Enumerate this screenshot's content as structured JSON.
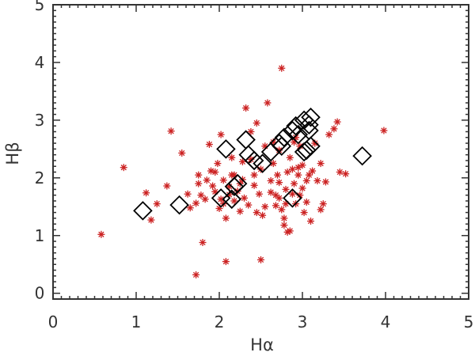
{
  "chart_data": {
    "type": "scatter",
    "title": "",
    "xlabel": "Hα",
    "ylabel": "Hβ",
    "xlim": [
      0,
      5
    ],
    "ylim": [
      -0.1,
      5
    ],
    "xticks": [
      "0",
      "1",
      "2",
      "3",
      "4",
      "5"
    ],
    "yticks": [
      "0",
      "1",
      "2",
      "3",
      "4",
      "5"
    ],
    "grid": false,
    "legend": "none",
    "colors": {
      "asterisk": "#cc2222",
      "diamond": "#000000",
      "axis": "#333333"
    },
    "series": [
      {
        "marker": "asterisk",
        "points": [
          [
            0.58,
            1.02
          ],
          [
            0.85,
            2.18
          ],
          [
            1.12,
            1.74
          ],
          [
            1.18,
            1.27
          ],
          [
            1.25,
            1.55
          ],
          [
            1.37,
            1.86
          ],
          [
            1.42,
            2.81
          ],
          [
            1.55,
            2.43
          ],
          [
            1.62,
            1.72
          ],
          [
            1.65,
            1.48
          ],
          [
            1.72,
            0.32
          ],
          [
            1.72,
            1.56
          ],
          [
            1.75,
            2.05
          ],
          [
            1.75,
            1.9
          ],
          [
            1.78,
            1.7
          ],
          [
            1.8,
            0.88
          ],
          [
            1.83,
            1.63
          ],
          [
            1.85,
            1.96
          ],
          [
            1.88,
            2.58
          ],
          [
            1.9,
            2.12
          ],
          [
            1.92,
            1.86
          ],
          [
            1.95,
            2.1
          ],
          [
            1.95,
            1.76
          ],
          [
            1.98,
            2.25
          ],
          [
            2.0,
            1.47
          ],
          [
            2.02,
            1.63
          ],
          [
            2.02,
            2.75
          ],
          [
            2.05,
            1.55
          ],
          [
            2.05,
            1.96
          ],
          [
            2.08,
            1.3
          ],
          [
            2.08,
            0.55
          ],
          [
            2.12,
            1.85
          ],
          [
            2.12,
            1.71
          ],
          [
            2.15,
            2.05
          ],
          [
            2.15,
            2.35
          ],
          [
            2.18,
            1.6
          ],
          [
            2.18,
            2.05
          ],
          [
            2.22,
            1.77
          ],
          [
            2.25,
            1.9
          ],
          [
            2.25,
            1.42
          ],
          [
            2.28,
            1.97
          ],
          [
            2.28,
            2.28
          ],
          [
            2.3,
            1.65
          ],
          [
            2.32,
            3.21
          ],
          [
            2.35,
            1.53
          ],
          [
            2.38,
            2.32
          ],
          [
            2.38,
            2.8
          ],
          [
            2.42,
            1.87
          ],
          [
            2.42,
            2.05
          ],
          [
            2.45,
            2.95
          ],
          [
            2.45,
            1.4
          ],
          [
            2.48,
            1.72
          ],
          [
            2.5,
            2.15
          ],
          [
            2.5,
            0.58
          ],
          [
            2.52,
            1.35
          ],
          [
            2.55,
            1.5
          ],
          [
            2.55,
            2.55
          ],
          [
            2.58,
            3.3
          ],
          [
            2.62,
            1.95
          ],
          [
            2.62,
            1.75
          ],
          [
            2.65,
            2.62
          ],
          [
            2.65,
            2.25
          ],
          [
            2.68,
            1.7
          ],
          [
            2.68,
            1.52
          ],
          [
            2.7,
            2.05
          ],
          [
            2.72,
            1.92
          ],
          [
            2.72,
            1.65
          ],
          [
            2.72,
            2.48
          ],
          [
            2.75,
            3.9
          ],
          [
            2.75,
            1.45
          ],
          [
            2.78,
            1.3
          ],
          [
            2.78,
            1.18
          ],
          [
            2.8,
            1.55
          ],
          [
            2.8,
            1.8
          ],
          [
            2.82,
            2.1
          ],
          [
            2.82,
            1.06
          ],
          [
            2.85,
            1.08
          ],
          [
            2.85,
            2.35
          ],
          [
            2.88,
            2.15
          ],
          [
            2.88,
            1.72
          ],
          [
            2.9,
            1.9
          ],
          [
            2.9,
            2.62
          ],
          [
            2.92,
            1.55
          ],
          [
            2.92,
            2.7
          ],
          [
            2.95,
            2.18
          ],
          [
            2.95,
            2.05
          ],
          [
            2.97,
            1.7
          ],
          [
            2.97,
            2.55
          ],
          [
            3.0,
            1.82
          ],
          [
            3.0,
            2.22
          ],
          [
            3.02,
            1.4
          ],
          [
            3.05,
            1.95
          ],
          [
            3.05,
            1.58
          ],
          [
            3.08,
            2.05
          ],
          [
            3.1,
            1.25
          ],
          [
            3.12,
            2.12
          ],
          [
            3.15,
            2.6
          ],
          [
            3.18,
            1.95
          ],
          [
            3.22,
            1.45
          ],
          [
            3.22,
            2.25
          ],
          [
            3.25,
            1.55
          ],
          [
            3.28,
            1.93
          ],
          [
            3.32,
            2.75
          ],
          [
            3.38,
            2.85
          ],
          [
            3.42,
            2.97
          ],
          [
            3.45,
            2.1
          ],
          [
            3.52,
            2.07
          ],
          [
            3.98,
            2.82
          ]
        ]
      },
      {
        "marker": "diamond",
        "points": [
          [
            1.08,
            1.43
          ],
          [
            1.52,
            1.53
          ],
          [
            2.02,
            1.65
          ],
          [
            2.08,
            2.5
          ],
          [
            2.15,
            1.63
          ],
          [
            2.18,
            1.85
          ],
          [
            2.22,
            1.9
          ],
          [
            2.32,
            2.66
          ],
          [
            2.35,
            2.4
          ],
          [
            2.42,
            2.3
          ],
          [
            2.52,
            2.25
          ],
          [
            2.62,
            2.45
          ],
          [
            2.72,
            2.6
          ],
          [
            2.75,
            2.55
          ],
          [
            2.78,
            2.7
          ],
          [
            2.88,
            2.82
          ],
          [
            2.92,
            2.9
          ],
          [
            2.95,
            2.75
          ],
          [
            3.02,
            2.45
          ],
          [
            3.02,
            3.0
          ],
          [
            3.05,
            2.48
          ],
          [
            3.08,
            2.82
          ],
          [
            3.08,
            2.92
          ],
          [
            3.1,
            3.05
          ],
          [
            3.1,
            2.55
          ],
          [
            2.88,
            1.65
          ],
          [
            3.72,
            2.38
          ]
        ]
      }
    ]
  }
}
